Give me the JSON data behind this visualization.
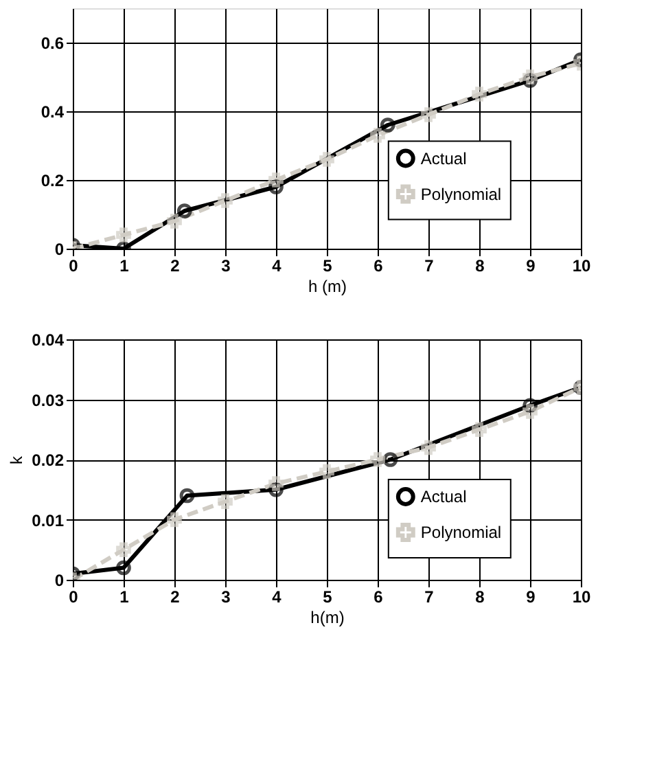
{
  "chart_data": [
    {
      "type": "line",
      "xlabel": "h (m)",
      "xlim": [
        0,
        10
      ],
      "xticks": [
        0,
        1,
        2,
        3,
        4,
        5,
        6,
        7,
        8,
        9,
        10
      ],
      "ylim": [
        0,
        0.7
      ],
      "yticks": [
        {
          "value": 0,
          "label": "0"
        },
        0.2,
        0.4,
        0.6
      ],
      "grid": true,
      "legend": "right",
      "series": [
        {
          "name": "Actual",
          "color": "#000000",
          "marker": "circle",
          "line_style": "solid",
          "x": [
            0,
            1,
            2.2,
            4,
            6.2,
            9,
            10
          ],
          "values": [
            0.01,
            0.0,
            0.11,
            0.18,
            0.36,
            0.49,
            0.55
          ]
        },
        {
          "name": "Polynomial",
          "color": "#d0ccc4",
          "marker": "cross",
          "line_style": "dashed",
          "x": [
            0,
            1,
            2,
            3,
            4,
            5,
            6,
            7,
            8,
            9,
            10
          ],
          "values": [
            0.0,
            0.04,
            0.08,
            0.14,
            0.2,
            0.26,
            0.33,
            0.39,
            0.45,
            0.5,
            0.54
          ]
        }
      ]
    },
    {
      "type": "line",
      "xlabel": "h(m)",
      "ylabel": "k",
      "xlim": [
        0,
        10
      ],
      "xticks": [
        0,
        1,
        2,
        3,
        4,
        5,
        6,
        7,
        8,
        9,
        10
      ],
      "ylim": [
        0,
        0.04
      ],
      "yticks": [
        {
          "value": 0,
          "label": "0"
        },
        0.01,
        0.02,
        0.03,
        0.04
      ],
      "grid": true,
      "legend": "bottom right",
      "series": [
        {
          "name": "Actual",
          "color": "#000000",
          "marker": "circle",
          "line_style": "solid",
          "x": [
            0,
            1,
            2.25,
            4,
            6.25,
            9,
            10
          ],
          "values": [
            0.001,
            0.002,
            0.014,
            0.015,
            0.02,
            0.029,
            0.032
          ]
        },
        {
          "name": "Polynomial",
          "color": "#d0ccc4",
          "marker": "cross",
          "line_style": "dashed",
          "x": [
            0,
            1,
            2,
            3,
            4,
            5,
            6,
            7,
            8,
            9,
            10
          ],
          "values": [
            0.0,
            0.005,
            0.01,
            0.013,
            0.016,
            0.018,
            0.02,
            0.022,
            0.025,
            0.028,
            0.032
          ]
        }
      ]
    }
  ]
}
